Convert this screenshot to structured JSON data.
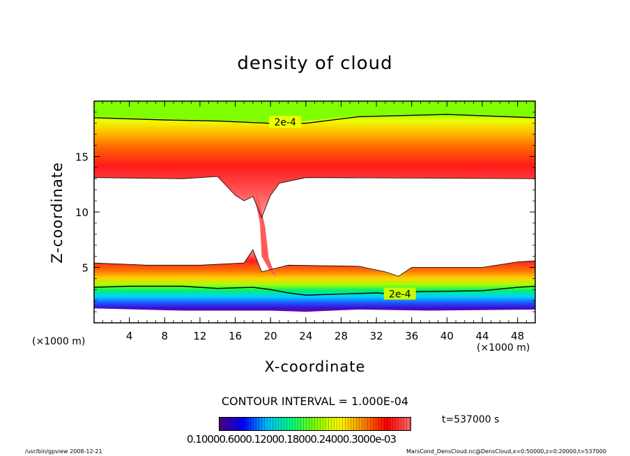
{
  "chart_data": {
    "type": "heatmap",
    "title": "density of cloud",
    "xlabel": "X-coordinate",
    "ylabel": "Z-coordinate",
    "x_unit_left": "(×1000 m)",
    "x_unit_right": "(×1000 m)",
    "xlim": [
      0,
      50
    ],
    "ylim": [
      0,
      20
    ],
    "x_ticks": [
      4,
      8,
      12,
      16,
      20,
      24,
      28,
      32,
      36,
      40,
      44,
      48
    ],
    "y_ticks": [
      5,
      10,
      15
    ],
    "contour_label": "2e-4",
    "contour_interval": "CONTOUR INTERVAL = 1.000E-04",
    "time": "t=537000 s",
    "colorbar_ticks_text": "0.10000.6000.12000.18000.24000.3000e-03",
    "colormap": [
      "#4b0082",
      "#0000ff",
      "#00bfff",
      "#00ff7f",
      "#7fff00",
      "#ffff00",
      "#ff8c00",
      "#ff0000",
      "#ff6a6a"
    ],
    "upper_cloud_top": [
      [
        0,
        18.6
      ],
      [
        8,
        18.4
      ],
      [
        12,
        18.3
      ],
      [
        20,
        18.1
      ],
      [
        24,
        18.2
      ],
      [
        30,
        18.7
      ],
      [
        40,
        18.9
      ],
      [
        50,
        18.6
      ]
    ],
    "upper_cloud_base": [
      [
        0,
        13.1
      ],
      [
        10,
        13.0
      ],
      [
        14,
        13.2
      ],
      [
        16,
        11.5
      ],
      [
        17,
        11.0
      ],
      [
        18,
        11.4
      ],
      [
        19,
        9.5
      ],
      [
        20,
        11.5
      ],
      [
        21,
        12.6
      ],
      [
        24,
        13.1
      ],
      [
        50,
        13.0
      ]
    ],
    "lower_cloud_top": [
      [
        0,
        5.4
      ],
      [
        6,
        5.2
      ],
      [
        12,
        5.2
      ],
      [
        17,
        5.4
      ],
      [
        18,
        6.6
      ],
      [
        19,
        4.6
      ],
      [
        22,
        5.2
      ],
      [
        30,
        5.1
      ],
      [
        33,
        4.6
      ],
      [
        34.5,
        4.2
      ],
      [
        36,
        5.0
      ],
      [
        44,
        5.0
      ],
      [
        48,
        5.5
      ],
      [
        50,
        5.6
      ]
    ],
    "lower_cloud_base": [
      [
        0,
        1.3
      ],
      [
        10,
        1.1
      ],
      [
        20,
        1.1
      ],
      [
        24,
        1.0
      ],
      [
        30,
        1.2
      ],
      [
        38,
        1.1
      ],
      [
        50,
        1.2
      ]
    ],
    "contour_2e4_upper": [
      [
        0,
        18.5
      ],
      [
        8,
        18.3
      ],
      [
        14,
        18.2
      ],
      [
        20,
        18.0
      ],
      [
        24,
        18.0
      ],
      [
        30,
        18.6
      ],
      [
        40,
        18.8
      ],
      [
        50,
        18.5
      ]
    ],
    "contour_2e4_lower": [
      [
        0,
        3.2
      ],
      [
        4,
        3.3
      ],
      [
        10,
        3.3
      ],
      [
        14,
        3.1
      ],
      [
        18,
        3.2
      ],
      [
        20,
        3.0
      ],
      [
        22,
        2.7
      ],
      [
        24,
        2.5
      ],
      [
        28,
        2.6
      ],
      [
        32,
        2.7
      ],
      [
        34,
        2.6
      ],
      [
        36,
        2.8
      ],
      [
        44,
        2.9
      ],
      [
        48,
        3.2
      ],
      [
        50,
        3.3
      ]
    ]
  },
  "footer": {
    "left": "/usr/bin/gpview   2008-12-21",
    "right": "MarsCond_DensCloud.nc@DensCloud,x=0:50000,z=0:20000,t=537000"
  }
}
